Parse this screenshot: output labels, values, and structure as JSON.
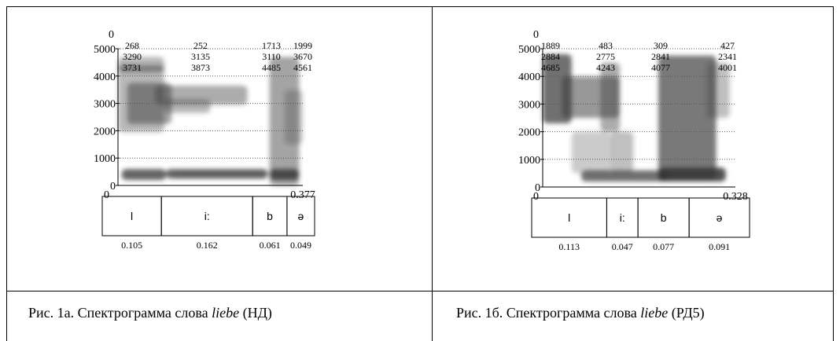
{
  "panels": [
    {
      "spectrogram": {
        "top_label": "0",
        "y_axis_labels": [
          "5000",
          "4000",
          "3000",
          "2000",
          "1000",
          "0"
        ],
        "formants": [
          [
            "268",
            "3290",
            "3731"
          ],
          [
            "252",
            "3135",
            "3873"
          ],
          [
            "1713",
            "3110",
            "4485"
          ],
          [
            "1999",
            "3670",
            "4561"
          ]
        ],
        "time_start": "0",
        "time_end": "0.377",
        "segments": [
          {
            "label": "l",
            "duration": "0.105"
          },
          {
            "label": "i:",
            "duration": "0.162"
          },
          {
            "label": "b",
            "duration": "0.061"
          },
          {
            "label": "ə",
            "duration": "0.049"
          }
        ]
      },
      "caption": {
        "prefix": "Рис. 1а. Спектрограмма слова ",
        "word": "liebe",
        "suffix": " (НД)"
      }
    },
    {
      "spectrogram": {
        "top_label": "0",
        "y_axis_labels": [
          "5000",
          "4000",
          "3000",
          "2000",
          "1000",
          "0"
        ],
        "formants": [
          [
            "1889",
            "2884",
            "4685"
          ],
          [
            "483",
            "2775",
            "4243"
          ],
          [
            "309",
            "2841",
            "4077"
          ],
          [
            "427",
            "2341",
            "4001"
          ]
        ],
        "time_start": "0",
        "time_end": "0.328",
        "segments": [
          {
            "label": "l",
            "duration": "0.113"
          },
          {
            "label": "i:",
            "duration": "0.047"
          },
          {
            "label": "b",
            "duration": "0.077"
          },
          {
            "label": "ə",
            "duration": "0.091"
          }
        ]
      },
      "caption": {
        "prefix": "Рис. 1б. Спектрограмма слова ",
        "word": "liebe",
        "suffix": " (РД5)"
      }
    }
  ]
}
